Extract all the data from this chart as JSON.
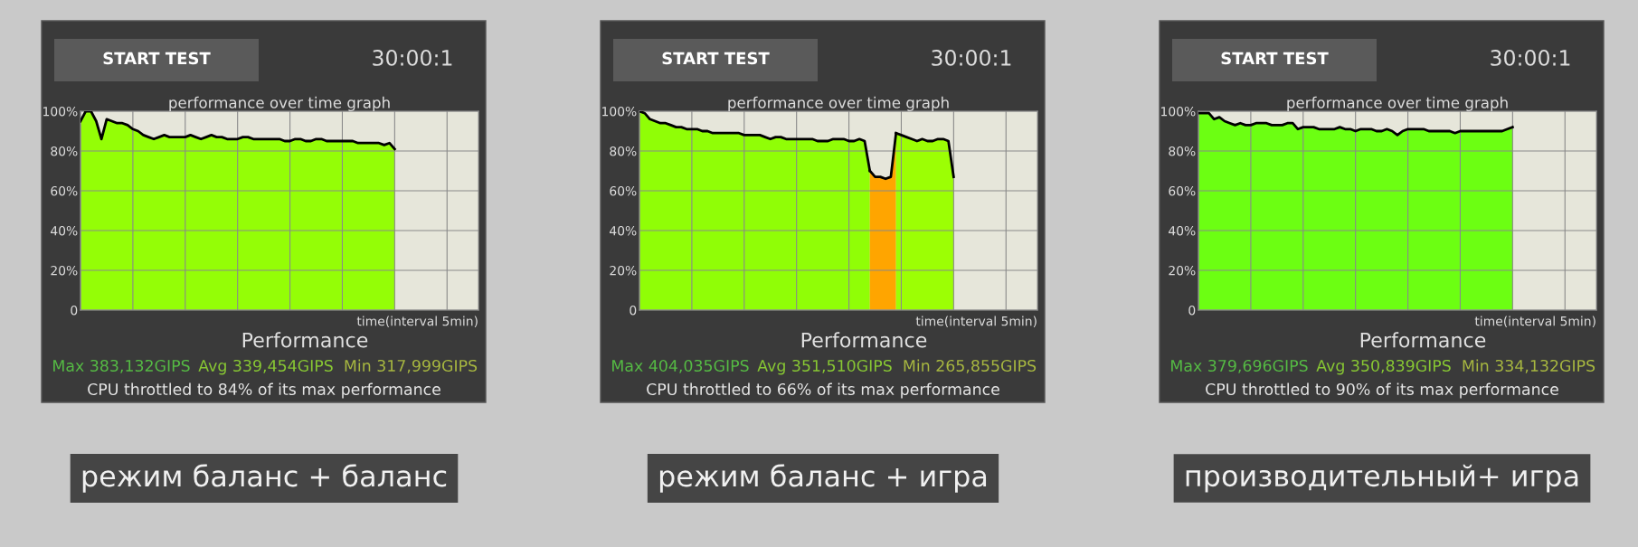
{
  "chart_data": [
    {
      "type": "area",
      "title": "performance over time graph",
      "xlabel": "time(interval 5min)",
      "categories": [
        null,
        null,
        null,
        null,
        null,
        null,
        null,
        null,
        null,
        null,
        null,
        null,
        null,
        null,
        null,
        null,
        null,
        null,
        null,
        null,
        null,
        null,
        null,
        null,
        null,
        null,
        null,
        null,
        null,
        null,
        null,
        null,
        null,
        null,
        null,
        null,
        null,
        null,
        null,
        null,
        null,
        null,
        null,
        null,
        null,
        null,
        null,
        null,
        null,
        null,
        null,
        null,
        null,
        null,
        null,
        null,
        null,
        null,
        null,
        null,
        null,
        null,
        null,
        null,
        null,
        null,
        null,
        null,
        null,
        null,
        null,
        null,
        null,
        null,
        null,
        null,
        null
      ],
      "series": [
        {
          "color": "#94fe06",
          "values": [
            95,
            100,
            100,
            95,
            86,
            96,
            95,
            94,
            94,
            93,
            91,
            90,
            88,
            87,
            86,
            87,
            88,
            87,
            87,
            87,
            87,
            88,
            87,
            86,
            87,
            88,
            87,
            87,
            86,
            86,
            86,
            87,
            87,
            86,
            86,
            86,
            86,
            86,
            86,
            85,
            85,
            86,
            86,
            85,
            85,
            86,
            86,
            85,
            85,
            85,
            85,
            85,
            85,
            84,
            84,
            84,
            84,
            84,
            83,
            84,
            81,
            null,
            null,
            null,
            null,
            null,
            null,
            null,
            null,
            null,
            null,
            null,
            null,
            null,
            null,
            null,
            null
          ]
        }
      ],
      "ylim": [
        0,
        100
      ],
      "yticks": [
        {
          "value": 0,
          "label": "0"
        },
        {
          "value": 20,
          "label": "20%"
        },
        {
          "value": 40,
          "label": "40%"
        },
        {
          "value": 60,
          "label": "60%"
        },
        {
          "value": 80,
          "label": "80%"
        },
        {
          "value": 100,
          "label": "100%"
        }
      ],
      "tick_labels": "y",
      "grid": true,
      "annotations": [
        "START TEST",
        "30:00:1",
        "Performance",
        "Max 383,132GIPS",
        "Avg 339,454GIPS",
        "Min 317,999GIPS",
        "CPU throttled to 84% of its max performance",
        "режим баланс + баланс"
      ]
    },
    {
      "type": "area",
      "title": "performance over time graph",
      "xlabel": "time(interval 5min)",
      "categories": [
        null,
        null,
        null,
        null,
        null,
        null,
        null,
        null,
        null,
        null,
        null,
        null,
        null,
        null,
        null,
        null,
        null,
        null,
        null,
        null,
        null,
        null,
        null,
        null,
        null,
        null,
        null,
        null,
        null,
        null,
        null,
        null,
        null,
        null,
        null,
        null,
        null,
        null,
        null,
        null,
        null,
        null,
        null,
        null,
        null,
        null,
        null,
        null,
        null,
        null,
        null,
        null,
        null,
        null,
        null,
        null,
        null,
        null,
        null,
        null,
        null,
        null,
        null,
        null,
        null,
        null,
        null,
        null,
        null,
        null,
        null,
        null,
        null,
        null,
        null,
        null,
        null
      ],
      "series": [
        {
          "color": "#90fe06",
          "values": [
            100,
            99,
            96,
            95,
            94,
            94,
            93,
            92,
            92,
            91,
            91,
            91,
            90,
            90,
            89,
            89,
            89,
            89,
            89,
            89,
            88,
            88,
            88,
            88,
            87,
            86,
            87,
            87,
            86,
            86,
            86,
            86,
            86,
            86,
            85,
            85,
            85,
            86,
            86,
            86,
            85,
            85,
            86,
            85,
            70,
            null,
            null,
            null,
            null,
            null,
            null,
            null,
            null,
            null,
            null,
            null,
            null,
            null,
            null,
            null,
            null,
            null,
            null,
            null,
            null,
            null,
            null,
            null,
            null,
            null,
            null,
            null,
            null,
            null,
            null,
            null,
            null
          ]
        },
        {
          "color": "#ffa500",
          "values": [
            null,
            null,
            null,
            null,
            null,
            null,
            null,
            null,
            null,
            null,
            null,
            null,
            null,
            null,
            null,
            null,
            null,
            null,
            null,
            null,
            null,
            null,
            null,
            null,
            null,
            null,
            null,
            null,
            null,
            null,
            null,
            null,
            null,
            null,
            null,
            null,
            null,
            null,
            null,
            null,
            null,
            null,
            null,
            null,
            70,
            67,
            67,
            66,
            67,
            89,
            null,
            null,
            null,
            null,
            null,
            null,
            null,
            null,
            null,
            null,
            null,
            null,
            null,
            null,
            null,
            null,
            null,
            null,
            null,
            null,
            null,
            null,
            null,
            null,
            null,
            null,
            null
          ]
        },
        {
          "color": "#9cff04",
          "values": [
            null,
            null,
            null,
            null,
            null,
            null,
            null,
            null,
            null,
            null,
            null,
            null,
            null,
            null,
            null,
            null,
            null,
            null,
            null,
            null,
            null,
            null,
            null,
            null,
            null,
            null,
            null,
            null,
            null,
            null,
            null,
            null,
            null,
            null,
            null,
            null,
            null,
            null,
            null,
            null,
            null,
            null,
            null,
            null,
            null,
            null,
            null,
            null,
            null,
            89,
            88,
            87,
            86,
            85,
            86,
            85,
            85,
            86,
            86,
            85,
            67,
            null,
            null,
            null,
            null,
            null,
            null,
            null,
            null,
            null,
            null,
            null,
            null,
            null,
            null,
            null,
            null
          ]
        }
      ],
      "ylim": [
        0,
        100
      ],
      "yticks": [
        {
          "value": 0,
          "label": "0"
        },
        {
          "value": 20,
          "label": "20%"
        },
        {
          "value": 40,
          "label": "40%"
        },
        {
          "value": 60,
          "label": "60%"
        },
        {
          "value": 80,
          "label": "80%"
        },
        {
          "value": 100,
          "label": "100%"
        }
      ],
      "tick_labels": "y",
      "grid": true,
      "annotations": [
        "START TEST",
        "30:00:1",
        "Performance",
        "Max 404,035GIPS",
        "Avg 351,510GIPS",
        "Min 265,855GIPS",
        "CPU throttled to 66% of its max performance",
        "режим баланс + игра"
      ]
    },
    {
      "type": "area",
      "title": "performance over time graph",
      "xlabel": "time(interval 5min)",
      "categories": [
        null,
        null,
        null,
        null,
        null,
        null,
        null,
        null,
        null,
        null,
        null,
        null,
        null,
        null,
        null,
        null,
        null,
        null,
        null,
        null,
        null,
        null,
        null,
        null,
        null,
        null,
        null,
        null,
        null,
        null,
        null,
        null,
        null,
        null,
        null,
        null,
        null,
        null,
        null,
        null,
        null,
        null,
        null,
        null,
        null,
        null,
        null,
        null,
        null,
        null,
        null,
        null,
        null,
        null,
        null,
        null,
        null,
        null,
        null,
        null,
        null,
        null,
        null,
        null,
        null,
        null,
        null,
        null,
        null,
        null,
        null,
        null,
        null,
        null,
        null,
        null,
        null
      ],
      "series": [
        {
          "color": "#6cff12",
          "values": [
            99,
            99,
            99,
            96,
            97,
            95,
            94,
            93,
            94,
            93,
            93,
            94,
            94,
            94,
            93,
            93,
            93,
            94,
            94,
            91,
            92,
            92,
            92,
            91,
            91,
            91,
            91,
            92,
            91,
            91,
            90,
            91,
            91,
            91,
            90,
            90,
            91,
            90,
            88,
            90,
            91,
            91,
            91,
            91,
            90,
            90,
            90,
            90,
            90,
            89,
            90,
            90,
            90,
            90,
            90,
            90,
            90,
            90,
            90,
            91,
            92,
            null,
            null,
            null,
            null,
            null,
            null,
            null,
            null,
            null,
            null,
            null,
            null,
            null,
            null,
            null,
            null
          ]
        }
      ],
      "ylim": [
        0,
        100
      ],
      "yticks": [
        {
          "value": 0,
          "label": "0"
        },
        {
          "value": 20,
          "label": "20%"
        },
        {
          "value": 40,
          "label": "40%"
        },
        {
          "value": 60,
          "label": "60%"
        },
        {
          "value": 80,
          "label": "80%"
        },
        {
          "value": 100,
          "label": "100%"
        }
      ],
      "tick_labels": "y",
      "grid": true,
      "annotations": [
        "START TEST",
        "30:00:1",
        "Performance",
        "Max 379,696GIPS",
        "Avg 350,839GIPS",
        "Min 334,132GIPS",
        "CPU throttled to 90% of its max performance",
        "производительный+ игра"
      ]
    }
  ]
}
